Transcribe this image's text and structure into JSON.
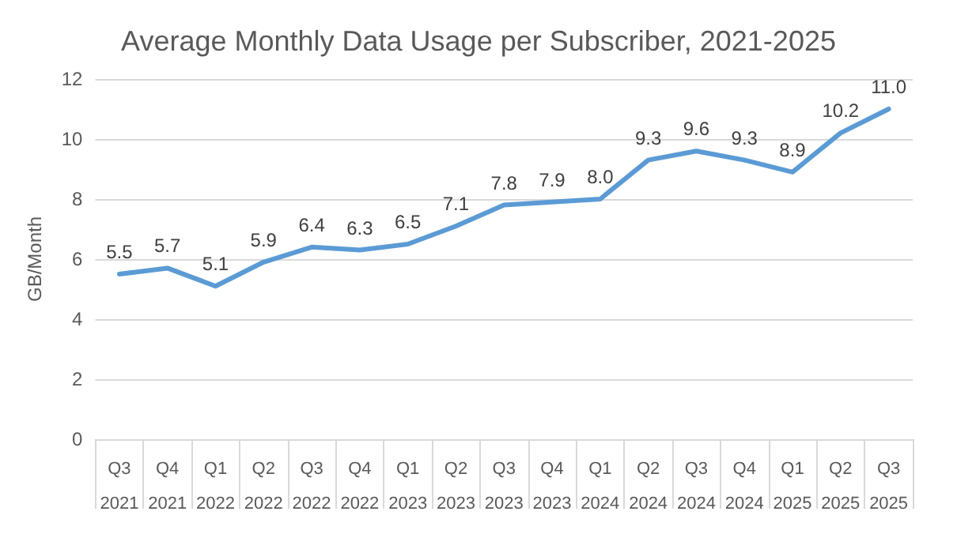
{
  "chart_data": {
    "type": "line",
    "title": "Average Monthly Data Usage per Subscriber, 2021-2025",
    "ylabel": "GB/Month",
    "categories": [
      "Q3\n2021",
      "Q4\n2021",
      "Q1\n2022",
      "Q2\n2022",
      "Q3\n2022",
      "Q4\n2022",
      "Q1\n2023",
      "Q2\n2023",
      "Q3\n2023",
      "Q4\n2023",
      "Q1\n2024",
      "Q2\n2024",
      "Q3\n2024",
      "Q4\n2024",
      "Q1\n2025",
      "Q2\n2025",
      "Q3\n2025"
    ],
    "series": [
      {
        "color": "#5b9bd5",
        "values": [
          5.5,
          5.7,
          5.1,
          5.9,
          6.4,
          6.3,
          6.5,
          7.1,
          7.8,
          7.9,
          8.0,
          9.3,
          9.6,
          9.3,
          8.9,
          10.2,
          11.0
        ],
        "value_labels": [
          "5.5",
          "5.7",
          "5.1",
          "5.9",
          "6.4",
          "6.3",
          "6.5",
          "7.1",
          "7.8",
          "7.9",
          "8.0",
          "9.3",
          "9.6",
          "9.3",
          "8.9",
          "10.2",
          "11.0"
        ]
      }
    ],
    "ylim": [
      0,
      12
    ],
    "yticks": [
      0,
      2,
      4,
      6,
      8,
      10,
      12
    ],
    "grid": "y",
    "marker": "none",
    "line_style": "solid"
  }
}
